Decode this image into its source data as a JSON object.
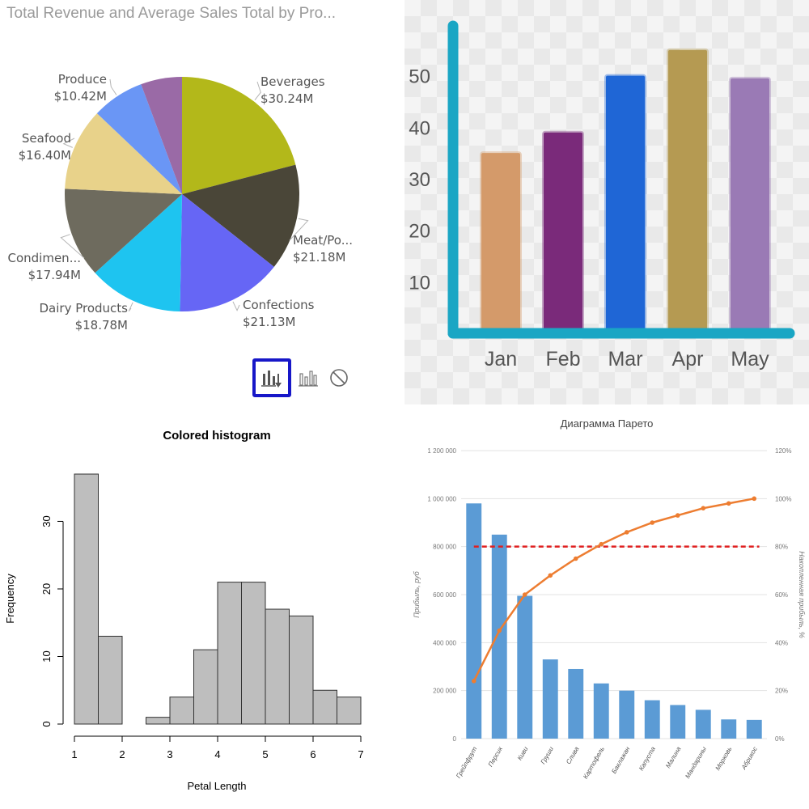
{
  "chart_data": [
    {
      "type": "pie",
      "title": "Total Revenue and Average Sales Total by Pro...",
      "slices": [
        {
          "label": "Beverages",
          "value": 30.24,
          "value_label": "$30.24M",
          "color": "#b3b81a"
        },
        {
          "label": "Meat/Po...",
          "value": 21.18,
          "value_label": "$21.18M",
          "color": "#4a4638"
        },
        {
          "label": "Confections",
          "value": 21.13,
          "value_label": "$21.13M",
          "color": "#6666f5"
        },
        {
          "label": "Dairy Products",
          "value": 18.78,
          "value_label": "$18.78M",
          "color": "#1ec4f0"
        },
        {
          "label": "Condimen...",
          "value": 17.94,
          "value_label": "$17.94M",
          "color": "#6e6b5e"
        },
        {
          "label": "Seafood",
          "value": 16.4,
          "value_label": "$16.40M",
          "color": "#e8d28a"
        },
        {
          "label": "Produce",
          "value": 10.42,
          "value_label": "$10.42M",
          "color": "#6a96f5"
        },
        {
          "label": "",
          "value": 8.2,
          "value_label": "",
          "color": "#9a6aa6"
        }
      ]
    },
    {
      "type": "bar",
      "categories": [
        "Jan",
        "Feb",
        "Mar",
        "Apr",
        "May"
      ],
      "values": [
        35,
        39,
        50,
        55,
        49.5
      ],
      "colors": [
        "#d49a6a",
        "#7a2a7a",
        "#1f66d6",
        "#b59a52",
        "#9a7ab5"
      ],
      "axis_color": "#1aa6c4",
      "yticks": [
        10,
        20,
        30,
        40,
        50
      ],
      "ylim": [
        0,
        60
      ]
    },
    {
      "type": "bar",
      "title": "Colored histogram",
      "xlabel": "Petal Length",
      "ylabel": "Frequency",
      "bins": [
        [
          1,
          1.5
        ],
        [
          1.5,
          2
        ],
        [
          2,
          2.5
        ],
        [
          2.5,
          3
        ],
        [
          3,
          3.5
        ],
        [
          3.5,
          4
        ],
        [
          4,
          4.5
        ],
        [
          4.5,
          5
        ],
        [
          5,
          5.5
        ],
        [
          5.5,
          6
        ],
        [
          6,
          6.5
        ],
        [
          6.5,
          7
        ]
      ],
      "values": [
        37,
        13,
        0,
        1,
        4,
        11,
        21,
        21,
        17,
        16,
        5,
        4
      ],
      "xticks": [
        1,
        2,
        3,
        4,
        5,
        6,
        7
      ],
      "yticks": [
        0,
        10,
        20,
        30
      ],
      "xlim": [
        1,
        7
      ],
      "ylim": [
        0,
        37
      ],
      "bar_color": "#bebebe"
    },
    {
      "type": "bar",
      "title": "Диаграмма Парето",
      "ylabel": "Прибыль, руб",
      "y2label": "Накопленная прибыль, %",
      "categories": [
        "Грейпфрут",
        "Персик",
        "Киви",
        "Груши",
        "Слива",
        "Картофель",
        "Баклажан",
        "Капуста",
        "Малина",
        "Мандарины",
        "Морковь",
        "Абрикос"
      ],
      "values": [
        980000,
        850000,
        595000,
        330000,
        290000,
        230000,
        200000,
        160000,
        140000,
        120000,
        80000,
        78000
      ],
      "cumulative_percent": [
        24,
        45,
        60,
        68,
        75,
        81,
        86,
        90,
        93,
        96,
        98,
        100
      ],
      "threshold_percent": 80,
      "yticks": [
        0,
        200000,
        400000,
        600000,
        800000,
        1000000,
        1200000
      ],
      "ytick_labels": [
        "0",
        "200 000",
        "400 000",
        "600 000",
        "800 000",
        "1 000 000",
        "1 200 000"
      ],
      "y2ticks": [
        "0%",
        "20%",
        "40%",
        "60%",
        "80%",
        "100%",
        "120%"
      ],
      "ylim": [
        0,
        1200000
      ],
      "y2lim": [
        0,
        120
      ],
      "bar_color": "#5b9bd5",
      "line_color": "#ed7d31",
      "threshold_color": "#e02020"
    }
  ]
}
